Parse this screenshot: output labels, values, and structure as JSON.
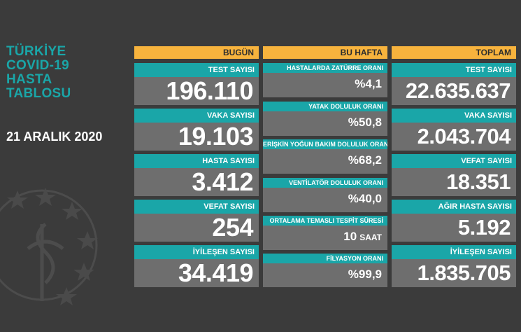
{
  "title_lines": [
    "TÜRKİYE",
    "COVID-19",
    "HASTA",
    "TABLOSU"
  ],
  "date": "21 ARALIK 2020",
  "colors": {
    "accent": "#1aa6a8",
    "header": "#f7b33d",
    "background": "#3b3b3b",
    "card": "#6e6e6e"
  },
  "today": {
    "header": "BUGÜN",
    "items": [
      {
        "label": "TEST SAYISI",
        "value": "196.110"
      },
      {
        "label": "VAKA SAYISI",
        "value": "19.103"
      },
      {
        "label": "HASTA SAYISI",
        "value": "3.412"
      },
      {
        "label": "VEFAT SAYISI",
        "value": "254"
      },
      {
        "label": "İYİLEŞEN SAYISI",
        "value": "34.419"
      }
    ]
  },
  "week": {
    "header": "BU HAFTA",
    "items": [
      {
        "label": "HASTALARDA ZATÜRRE ORANI",
        "value": "%4,1"
      },
      {
        "label": "YATAK DOLULUK ORANI",
        "value": "%50,8"
      },
      {
        "label": "ERİŞKİN YOĞUN BAKIM DOLULUK ORANI",
        "value": "%68,2"
      },
      {
        "label": "VENTİLATÖR DOLULUK ORANI",
        "value": "%40,0"
      },
      {
        "label": "ORTALAMA TEMASLI TESPİT SÜRESİ",
        "value": "10",
        "unit": "SAAT"
      },
      {
        "label": "FİLYASYON ORANI",
        "value": "%99,9"
      }
    ]
  },
  "total": {
    "header": "TOPLAM",
    "items": [
      {
        "label": "TEST SAYISI",
        "value": "22.635.637"
      },
      {
        "label": "VAKA SAYISI",
        "value": "2.043.704"
      },
      {
        "label": "VEFAT SAYISI",
        "value": "18.351"
      },
      {
        "label": "AĞIR HASTA SAYISI",
        "value": "5.192"
      },
      {
        "label": "İYİLEŞEN SAYISI",
        "value": "1.835.705"
      }
    ]
  }
}
